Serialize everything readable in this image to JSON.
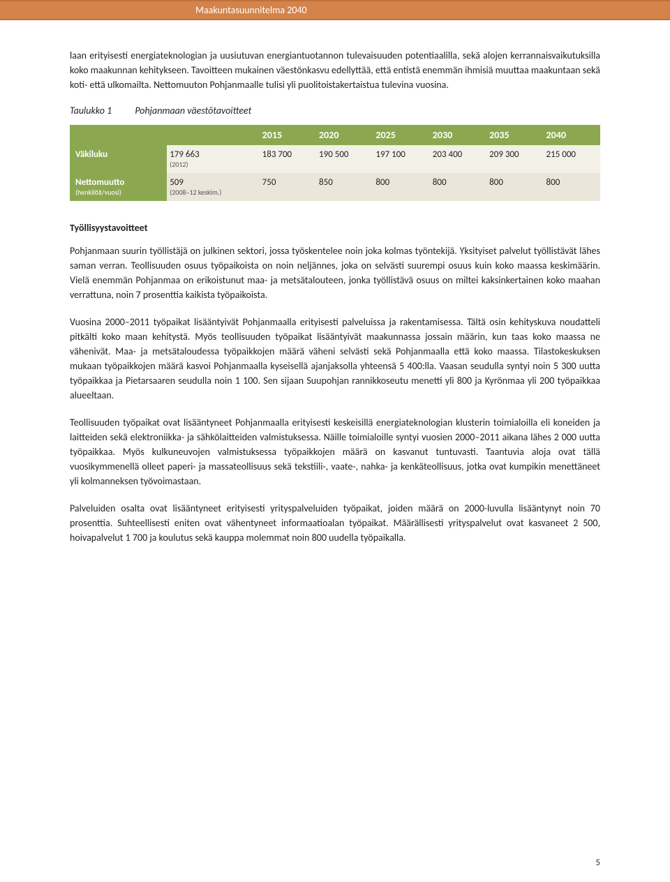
{
  "header": {
    "title": "Maakuntasuunnitelma 2040"
  },
  "paragraphs": {
    "p1": "laan erityisesti energiateknologian ja uusiutuvan energiantuotannon tulevaisuuden potentiaalilla, sekä alojen kerrannaisvaikutuksilla koko maakunnan kehitykseen. Tavoitteen mukainen väestönkasvu edellyttää, että entistä enemmän ihmisiä muuttaa maakuntaan sekä koti- että ulkomailta. Nettomuuton Pohjanmaalle tulisi yli puolitoistakertaistua tulevina vuosina.",
    "p2": "Pohjanmaan suurin työllistäjä on julkinen sektori, jossa työskentelee noin joka kolmas työntekijä. Yksityiset palvelut työllistävät lähes saman verran. Teollisuuden osuus työpaikoista on noin neljännes, joka on selvästi suurempi osuus kuin koko maassa keskimäärin. Vielä enemmän Pohjanmaa on erikoistunut maa- ja metsätalouteen, jonka työllistävä osuus on miltei kaksinkertainen koko maahan verrattuna, noin 7 prosenttia kaikista työpaikoista.",
    "p3": "Vuosina 2000–2011 työpaikat lisääntyivät Pohjanmaalla erityisesti palveluissa ja rakentamisessa. Tältä osin kehityskuva noudatteli pitkälti koko maan kehitystä. Myös teollisuuden työpaikat lisääntyivät maakunnassa jossain määrin, kun taas koko maassa ne vähenivät. Maa- ja metsätaloudessa työpaikkojen määrä väheni selvästi sekä Pohjanmaalla että koko maassa. Tilastokeskuksen mukaan työpaikkojen määrä kasvoi Pohjanmaalla kyseisellä ajanjaksolla yhteensä 5 400:lla. Vaasan seudulla syntyi noin 5 300 uutta työpaikkaa ja Pietarsaaren seudulla noin 1 100. Sen sijaan Suupohjan rannikkoseutu menetti yli 800 ja Kyrönmaa yli 200 työpaikkaa alueeltaan.",
    "p4": "Teollisuuden työpaikat ovat lisääntyneet Pohjanmaalla erityisesti keskeisillä energiateknologian klusterin toimialoilla eli koneiden ja laitteiden sekä elektroniikka- ja sähkölaitteiden valmistuksessa. Näille toimialoille syntyi vuosien 2000–2011 aikana lähes 2 000 uutta työpaikkaa. Myös kulkuneuvojen valmistuksessa työpaikkojen määrä on kasvanut tuntuvasti. Taantuvia aloja ovat tällä vuosikymmenellä olleet paperi- ja massateollisuus sekä tekstiili-, vaate-, nahka- ja kenkäteollisuus, jotka ovat kumpikin menettäneet yli kolmanneksen työvoimastaan.",
    "p5": "Palveluiden osalta ovat lisääntyneet erityisesti yrityspalveluiden työpaikat, joiden määrä on 2000-luvulla lisääntynyt noin 70 prosenttia. Suhteellisesti eniten ovat vähentyneet informaatioalan työpaikat. Määrällisesti yrityspalvelut ovat kasvaneet 2 500, hoivapalvelut 1 700 ja koulutus sekä kauppa molemmat noin 800 uudella työpaikalla."
  },
  "table": {
    "caption_label": "Taulukko 1",
    "caption_text": "Pohjanmaan väestötavoitteet",
    "header_bg": "#8ba850",
    "header_color": "#ffffff",
    "row_light_bg": "#f3f0e7",
    "row_alt_bg": "#eae6da",
    "years": [
      "2015",
      "2020",
      "2025",
      "2030",
      "2035",
      "2040"
    ],
    "rows": [
      {
        "label": "Väkiluku",
        "sublabel": "",
        "base": "179 663",
        "base_sub": "(2012)",
        "values": [
          "183 700",
          "190 500",
          "197 100",
          "203 400",
          "209 300",
          "215 000"
        ]
      },
      {
        "label": "Nettomuutto",
        "sublabel": "(henkilöä/vuosi)",
        "base": "509",
        "base_sub": "(2008–12 keskim.)",
        "values": [
          "750",
          "850",
          "800",
          "800",
          "800",
          "800"
        ]
      }
    ]
  },
  "section_heading": "Työllisyystavoitteet",
  "page_number": "5"
}
